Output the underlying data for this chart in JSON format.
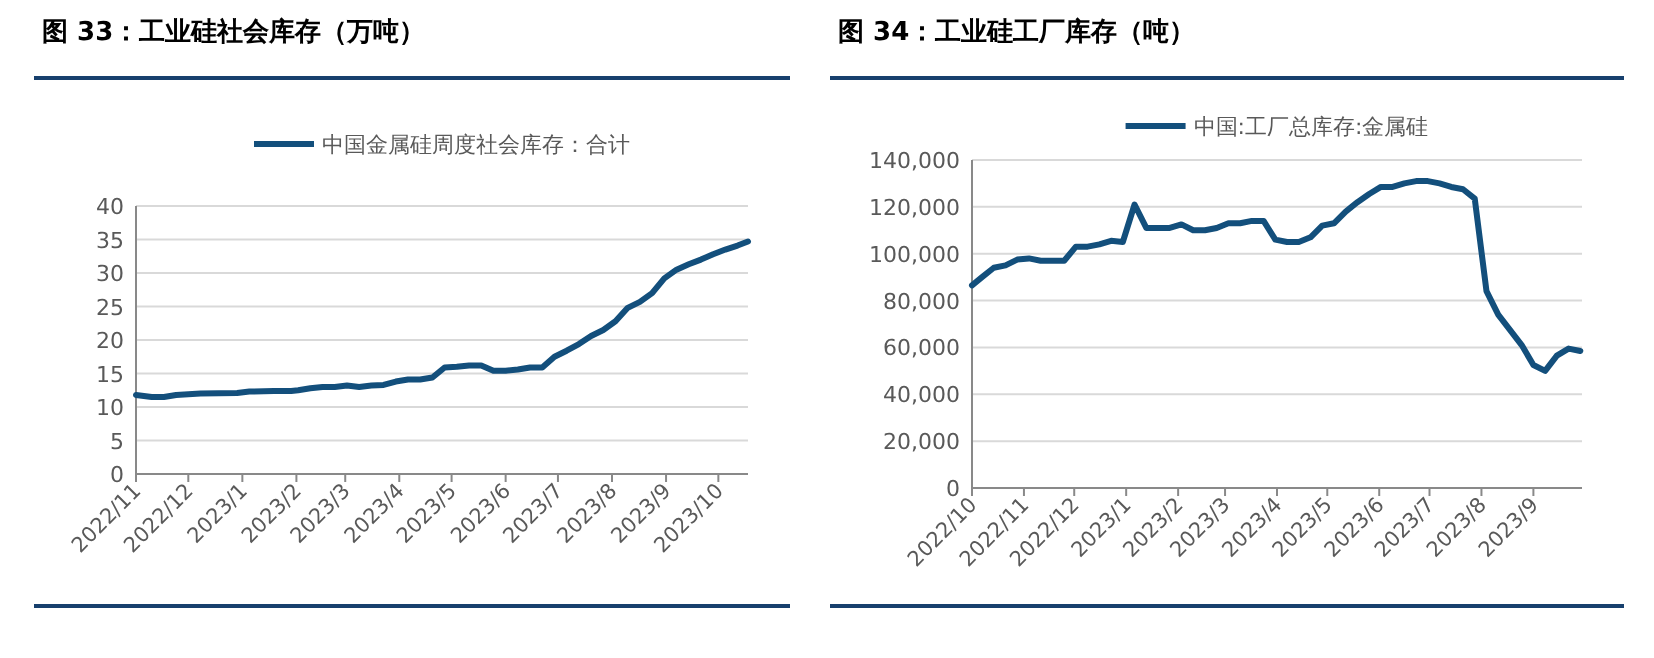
{
  "chart_data": [
    {
      "type": "line",
      "title": "图 33：工业硅社会库存（万吨）",
      "legend": "top",
      "grid": "y",
      "line_style": "solid",
      "marker": "none",
      "xlim": [
        "2022-11-01",
        "2023-10-18"
      ],
      "ylim": [
        0,
        40
      ],
      "yticks": [
        0,
        5,
        10,
        15,
        20,
        25,
        30,
        35,
        40
      ],
      "xticks": [
        {
          "value": "2022-11-01",
          "label": "2022/11"
        },
        {
          "value": "2022-12-01",
          "label": "2022/12"
        },
        {
          "value": "2023-01-01",
          "label": "2023/1"
        },
        {
          "value": "2023-02-01",
          "label": "2023/2"
        },
        {
          "value": "2023-03-01",
          "label": "2023/3"
        },
        {
          "value": "2023-04-01",
          "label": "2023/4"
        },
        {
          "value": "2023-05-01",
          "label": "2023/5"
        },
        {
          "value": "2023-06-01",
          "label": "2023/6"
        },
        {
          "value": "2023-07-01",
          "label": "2023/7"
        },
        {
          "value": "2023-08-01",
          "label": "2023/8"
        },
        {
          "value": "2023-09-01",
          "label": "2023/9"
        },
        {
          "value": "2023-10-01",
          "label": "2023/10"
        }
      ],
      "x": [
        "2022-11-01",
        "2022-11-10",
        "2022-11-17",
        "2022-11-24",
        "2022-12-01",
        "2022-12-08",
        "2022-12-29",
        "2023-01-05",
        "2023-01-19",
        "2023-01-29",
        "2023-02-02",
        "2023-02-09",
        "2023-02-16",
        "2023-02-23",
        "2023-03-02",
        "2023-03-09",
        "2023-03-16",
        "2023-03-23",
        "2023-03-30",
        "2023-04-06",
        "2023-04-13",
        "2023-04-20",
        "2023-04-27",
        "2023-05-04",
        "2023-05-11",
        "2023-05-18",
        "2023-05-25",
        "2023-06-01",
        "2023-06-08",
        "2023-06-15",
        "2023-06-22",
        "2023-06-29",
        "2023-07-06",
        "2023-07-13",
        "2023-07-20",
        "2023-07-27",
        "2023-08-03",
        "2023-08-10",
        "2023-08-17",
        "2023-08-24",
        "2023-08-31",
        "2023-09-07",
        "2023-09-14",
        "2023-09-21",
        "2023-09-28",
        "2023-10-05",
        "2023-10-12",
        "2023-10-18"
      ],
      "series": [
        {
          "name": "中国金属硅周度社会库存：合计",
          "color": "#134f7c",
          "values": [
            11.8,
            11.5,
            11.5,
            11.8,
            11.9,
            12.0,
            12.1,
            12.3,
            12.4,
            12.4,
            12.5,
            12.8,
            13.0,
            13.0,
            13.2,
            13.0,
            13.2,
            13.3,
            13.8,
            14.1,
            14.1,
            14.4,
            15.9,
            16.0,
            16.2,
            16.2,
            15.4,
            15.4,
            15.6,
            15.9,
            15.9,
            17.5,
            18.4,
            19.4,
            20.6,
            21.5,
            22.8,
            24.8,
            25.7,
            27.0,
            29.2,
            30.5,
            31.3,
            32.0,
            32.8,
            33.5,
            34.1,
            34.7
          ]
        }
      ]
    },
    {
      "type": "line",
      "title": "图 34：工业硅工厂库存（吨）",
      "legend": "top",
      "grid": "y",
      "line_style": "solid",
      "marker": "none",
      "xlim": [
        "2022-10-01",
        "2023-09-30"
      ],
      "ylim": [
        0,
        140000
      ],
      "yticks": [
        {
          "value": 0,
          "label": "0"
        },
        {
          "value": 20000,
          "label": "20,000"
        },
        {
          "value": 40000,
          "label": "40,000"
        },
        {
          "value": 60000,
          "label": "60,000"
        },
        {
          "value": 80000,
          "label": "80,000"
        },
        {
          "value": 100000,
          "label": "100,000"
        },
        {
          "value": 120000,
          "label": "120,000"
        },
        {
          "value": 140000,
          "label": "140,000"
        }
      ],
      "xticks": [
        {
          "value": "2022-10-01",
          "label": "2022/10"
        },
        {
          "value": "2022-11-01",
          "label": "2022/11"
        },
        {
          "value": "2022-12-01",
          "label": "2022/12"
        },
        {
          "value": "2023-01-01",
          "label": "2023/1"
        },
        {
          "value": "2023-02-01",
          "label": "2023/2"
        },
        {
          "value": "2023-03-01",
          "label": "2023/3"
        },
        {
          "value": "2023-04-01",
          "label": "2023/4"
        },
        {
          "value": "2023-05-01",
          "label": "2023/5"
        },
        {
          "value": "2023-06-01",
          "label": "2023/6"
        },
        {
          "value": "2023-07-01",
          "label": "2023/7"
        },
        {
          "value": "2023-08-01",
          "label": "2023/8"
        },
        {
          "value": "2023-09-01",
          "label": "2023/9"
        }
      ],
      "x": [
        "2022-10-01",
        "2022-10-07",
        "2022-10-14",
        "2022-10-21",
        "2022-10-28",
        "2022-11-04",
        "2022-11-11",
        "2022-11-18",
        "2022-11-25",
        "2022-12-02",
        "2022-12-09",
        "2022-12-16",
        "2022-12-23",
        "2022-12-30",
        "2023-01-06",
        "2023-01-13",
        "2023-01-20",
        "2023-01-27",
        "2023-02-03",
        "2023-02-10",
        "2023-02-17",
        "2023-02-24",
        "2023-03-03",
        "2023-03-10",
        "2023-03-17",
        "2023-03-24",
        "2023-03-31",
        "2023-04-07",
        "2023-04-14",
        "2023-04-21",
        "2023-04-28",
        "2023-05-05",
        "2023-05-12",
        "2023-05-19",
        "2023-05-26",
        "2023-06-02",
        "2023-06-09",
        "2023-06-16",
        "2023-06-23",
        "2023-06-30",
        "2023-07-07",
        "2023-07-14",
        "2023-07-21",
        "2023-07-28",
        "2023-08-04",
        "2023-08-11",
        "2023-08-18",
        "2023-08-25",
        "2023-09-01",
        "2023-09-08",
        "2023-09-15",
        "2023-09-22",
        "2023-09-29"
      ],
      "series": [
        {
          "name": "中国:工厂总库存:金属硅",
          "color": "#134f7c",
          "values": [
            86500,
            90000,
            94000,
            95000,
            97500,
            98000,
            97000,
            97000,
            97000,
            103000,
            103000,
            104000,
            105500,
            105000,
            121000,
            111000,
            111000,
            111000,
            112500,
            110000,
            110000,
            111000,
            113000,
            113000,
            114000,
            114000,
            106000,
            105000,
            105000,
            107000,
            112000,
            113000,
            118000,
            122000,
            125500,
            128500,
            128500,
            130000,
            131000,
            131000,
            130000,
            128500,
            127500,
            123500,
            84000,
            74000,
            67500,
            61000,
            52500,
            50000,
            56500,
            59500,
            58500
          ]
        }
      ]
    }
  ]
}
